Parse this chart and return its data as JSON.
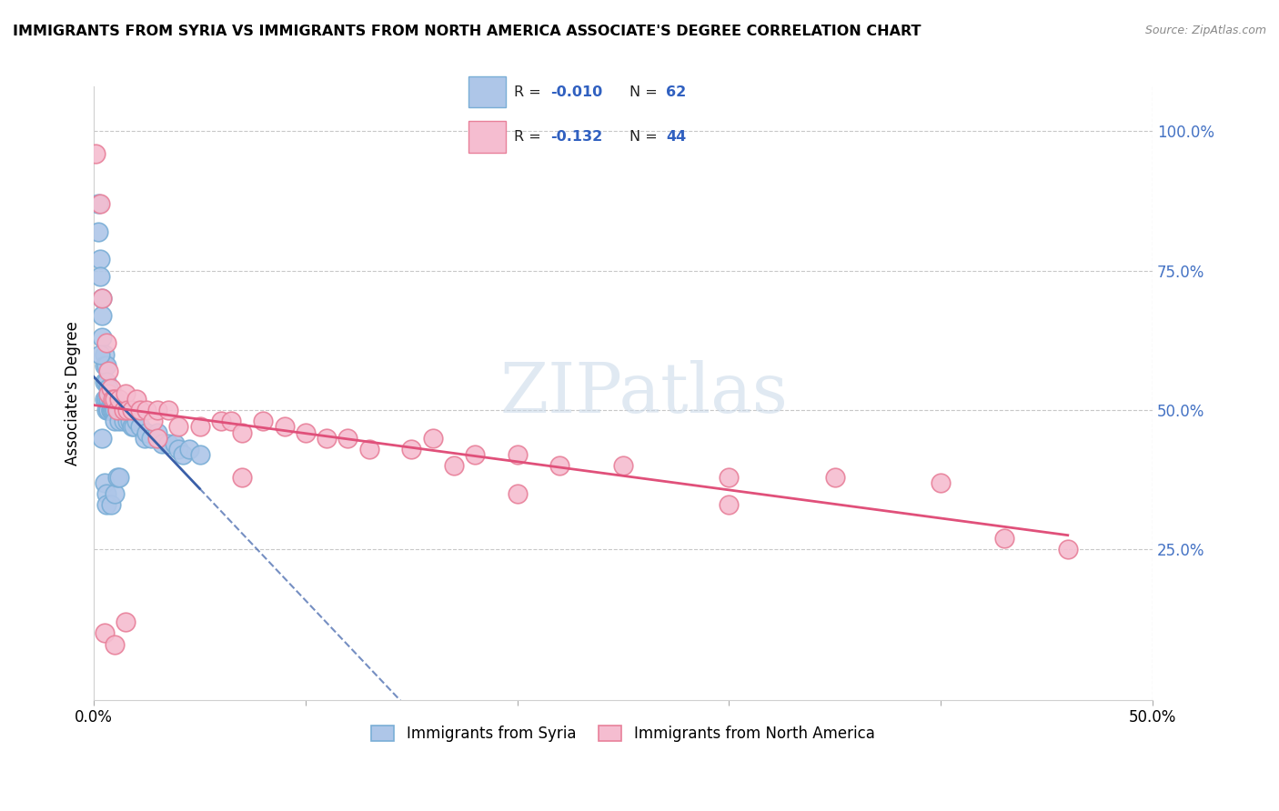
{
  "title": "IMMIGRANTS FROM SYRIA VS IMMIGRANTS FROM NORTH AMERICA ASSOCIATE'S DEGREE CORRELATION CHART",
  "source": "Source: ZipAtlas.com",
  "ylabel": "Associate's Degree",
  "xlim": [
    0.0,
    0.5
  ],
  "ylim": [
    -0.02,
    1.08
  ],
  "color_syria": "#aec6e8",
  "color_syria_edge": "#7aaed6",
  "color_noram": "#f5bdd0",
  "color_noram_edge": "#e8809a",
  "color_line_syria": "#3a5fa8",
  "color_line_noram": "#e0507a",
  "watermark": "ZIPatlas",
  "bg_color": "#ffffff",
  "grid_color": "#c8c8c8",
  "title_fontsize": 11.5,
  "syria_x": [
    0.002,
    0.002,
    0.003,
    0.003,
    0.004,
    0.004,
    0.004,
    0.005,
    0.005,
    0.005,
    0.005,
    0.006,
    0.006,
    0.006,
    0.006,
    0.007,
    0.007,
    0.007,
    0.007,
    0.007,
    0.008,
    0.008,
    0.008,
    0.009,
    0.009,
    0.009,
    0.01,
    0.01,
    0.01,
    0.011,
    0.011,
    0.012,
    0.012,
    0.013,
    0.014,
    0.015,
    0.016,
    0.017,
    0.018,
    0.019,
    0.02,
    0.022,
    0.024,
    0.025,
    0.027,
    0.03,
    0.032,
    0.035,
    0.038,
    0.04,
    0.042,
    0.045,
    0.05,
    0.003,
    0.004,
    0.005,
    0.006,
    0.006,
    0.008,
    0.01,
    0.011,
    0.012
  ],
  "syria_y": [
    0.87,
    0.82,
    0.77,
    0.74,
    0.7,
    0.67,
    0.63,
    0.6,
    0.58,
    0.55,
    0.52,
    0.58,
    0.55,
    0.52,
    0.5,
    0.54,
    0.52,
    0.5,
    0.5,
    0.5,
    0.52,
    0.5,
    0.5,
    0.5,
    0.5,
    0.5,
    0.5,
    0.5,
    0.48,
    0.5,
    0.5,
    0.5,
    0.48,
    0.5,
    0.48,
    0.5,
    0.48,
    0.48,
    0.47,
    0.47,
    0.48,
    0.47,
    0.45,
    0.46,
    0.45,
    0.46,
    0.44,
    0.44,
    0.44,
    0.43,
    0.42,
    0.43,
    0.42,
    0.6,
    0.45,
    0.37,
    0.35,
    0.33,
    0.33,
    0.35,
    0.38,
    0.38
  ],
  "noram_x": [
    0.001,
    0.003,
    0.004,
    0.006,
    0.007,
    0.007,
    0.008,
    0.009,
    0.01,
    0.011,
    0.012,
    0.014,
    0.015,
    0.016,
    0.018,
    0.02,
    0.022,
    0.025,
    0.028,
    0.03,
    0.035,
    0.04,
    0.05,
    0.06,
    0.065,
    0.07,
    0.08,
    0.09,
    0.1,
    0.11,
    0.12,
    0.13,
    0.15,
    0.16,
    0.17,
    0.18,
    0.2,
    0.22,
    0.25,
    0.3,
    0.35,
    0.4,
    0.43,
    0.46
  ],
  "noram_y": [
    0.96,
    0.87,
    0.7,
    0.62,
    0.57,
    0.53,
    0.54,
    0.52,
    0.52,
    0.5,
    0.52,
    0.5,
    0.53,
    0.5,
    0.5,
    0.52,
    0.5,
    0.5,
    0.48,
    0.5,
    0.5,
    0.47,
    0.47,
    0.48,
    0.48,
    0.46,
    0.48,
    0.47,
    0.46,
    0.45,
    0.45,
    0.43,
    0.43,
    0.45,
    0.4,
    0.42,
    0.42,
    0.4,
    0.4,
    0.38,
    0.38,
    0.37,
    0.27,
    0.25
  ],
  "noram_y_extra": [
    0.1,
    0.08,
    0.12,
    0.45,
    0.38,
    0.35,
    0.33
  ],
  "noram_x_extra": [
    0.005,
    0.01,
    0.015,
    0.03,
    0.07,
    0.2,
    0.3
  ]
}
